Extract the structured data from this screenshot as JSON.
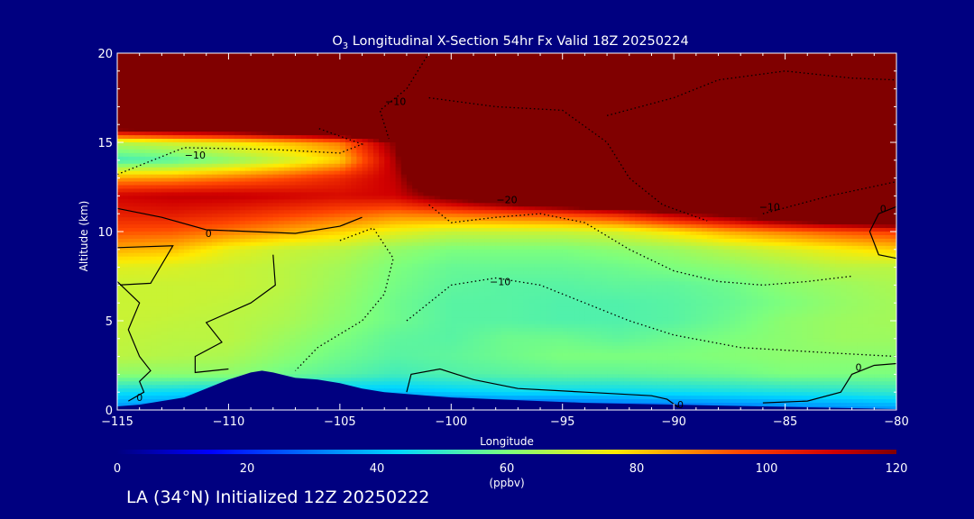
{
  "chart_data": {
    "type": "heatmap",
    "title": "O",
    "title_sub": "3",
    "title_rest": " Longitudinal X-Section 54hr  Fx Valid 18Z 20250224",
    "xlabel": "Longitude",
    "ylabel": "Altitude (km)",
    "xlim": [
      -115,
      -80
    ],
    "ylim": [
      0,
      20
    ],
    "x_ticks": [
      "−115",
      "−110",
      "−105",
      "−100",
      "−95",
      "−90",
      "−85",
      "−80"
    ],
    "x_tick_values": [
      -115,
      -110,
      -105,
      -100,
      -95,
      -90,
      -85,
      -80
    ],
    "y_ticks": [
      "0",
      "5",
      "10",
      "15",
      "20"
    ],
    "y_tick_values": [
      0,
      5,
      10,
      15,
      20
    ],
    "colorbar": {
      "range": [
        0,
        120
      ],
      "ticks": [
        "0",
        "20",
        "40",
        "60",
        "80",
        "100",
        "120"
      ],
      "tick_values": [
        0,
        20,
        40,
        60,
        80,
        100,
        120
      ],
      "units": "(ppbv)"
    },
    "field": {
      "longitudes": [
        -115,
        -112.5,
        -110,
        -107.5,
        -105,
        -102.5,
        -100,
        -97.5,
        -95,
        -92.5,
        -90,
        -87.5,
        -85,
        -82.5,
        -80
      ],
      "altitudes": [
        0,
        1,
        2,
        3,
        4,
        5,
        6,
        7,
        8,
        9,
        10,
        11,
        12,
        13,
        14,
        15,
        16,
        17,
        18,
        19,
        20
      ],
      "values": [
        [
          32,
          30,
          28,
          26,
          24,
          22,
          22,
          22,
          22,
          24,
          26,
          28,
          30,
          32,
          34
        ],
        [
          45,
          44,
          42,
          40,
          40,
          40,
          42,
          44,
          44,
          44,
          45,
          46,
          47,
          48,
          50
        ],
        [
          62,
          62,
          62,
          58,
          55,
          52,
          54,
          55,
          56,
          56,
          57,
          58,
          60,
          60,
          60
        ],
        [
          68,
          67,
          66,
          62,
          58,
          55,
          56,
          58,
          60,
          60,
          60,
          61,
          62,
          62,
          62
        ],
        [
          69,
          68,
          68,
          64,
          60,
          56,
          55,
          58,
          58,
          56,
          58,
          60,
          62,
          64,
          64
        ],
        [
          70,
          69,
          68,
          66,
          62,
          58,
          55,
          55,
          54,
          54,
          55,
          58,
          62,
          64,
          65
        ],
        [
          70,
          70,
          69,
          67,
          63,
          58,
          55,
          55,
          54,
          54,
          55,
          57,
          60,
          63,
          65
        ],
        [
          70,
          70,
          70,
          68,
          64,
          59,
          56,
          55,
          55,
          56,
          56,
          58,
          62,
          64,
          66
        ],
        [
          73,
          72,
          70,
          68,
          65,
          60,
          57,
          57,
          57,
          58,
          60,
          62,
          65,
          68,
          68
        ],
        [
          84,
          82,
          74,
          70,
          68,
          63,
          60,
          60,
          60,
          62,
          64,
          68,
          72,
          76,
          80
        ],
        [
          95,
          94,
          90,
          85,
          80,
          74,
          70,
          70,
          70,
          72,
          78,
          85,
          90,
          95,
          98
        ],
        [
          104,
          105,
          102,
          98,
          94,
          90,
          92,
          95,
          98,
          104,
          115,
          125,
          140,
          150,
          160
        ],
        [
          110,
          112,
          112,
          110,
          108,
          110,
          125,
          140,
          160,
          175,
          190,
          200,
          210,
          220,
          230
        ],
        [
          85,
          86,
          90,
          95,
          102,
          112,
          150,
          175,
          200,
          215,
          230,
          240,
          250,
          260,
          270
        ],
        [
          52,
          55,
          62,
          70,
          80,
          115,
          180,
          205,
          225,
          240,
          255,
          265,
          275,
          285,
          290
        ],
        [
          68,
          72,
          76,
          82,
          90,
          120,
          200,
          225,
          245,
          260,
          275,
          285,
          295,
          300,
          305
        ],
        [
          140,
          145,
          150,
          160,
          170,
          190,
          230,
          250,
          265,
          280,
          295,
          305,
          315,
          320,
          325
        ],
        [
          220,
          225,
          230,
          235,
          240,
          250,
          265,
          280,
          295,
          310,
          320,
          330,
          340,
          345,
          350
        ],
        [
          300,
          305,
          310,
          315,
          320,
          330,
          340,
          350,
          360,
          370,
          380,
          385,
          390,
          395,
          400
        ],
        [
          360,
          365,
          370,
          375,
          380,
          390,
          400,
          410,
          420,
          430,
          440,
          445,
          450,
          455,
          460
        ],
        [
          420,
          425,
          430,
          435,
          440,
          450,
          460,
          470,
          480,
          490,
          500,
          505,
          510,
          515,
          520
        ]
      ]
    },
    "terrain": {
      "longitudes": [
        -115,
        -114,
        -113,
        -112,
        -111,
        -110,
        -109,
        -108.5,
        -108,
        -107,
        -106,
        -105,
        -104,
        -103,
        -102,
        -101,
        -100,
        -98,
        -96,
        -94,
        -92,
        -90,
        -88,
        -86,
        -84,
        -82,
        -80
      ],
      "heights_km": [
        0.2,
        0.3,
        0.5,
        0.7,
        1.2,
        1.7,
        2.1,
        2.2,
        2.1,
        1.8,
        1.7,
        1.5,
        1.2,
        1.0,
        0.9,
        0.8,
        0.7,
        0.6,
        0.5,
        0.4,
        0.35,
        0.3,
        0.25,
        0.2,
        0.15,
        0.1,
        0.05
      ]
    },
    "contour_labels": [
      {
        "text": "−10",
        "lon": -111.5,
        "alt": 14.3
      },
      {
        "text": "−10",
        "lon": -102.5,
        "alt": 17.3
      },
      {
        "text": "−20",
        "lon": -97.5,
        "alt": 11.8
      },
      {
        "text": "−10",
        "lon": -85.7,
        "alt": 11.4
      },
      {
        "text": "−10",
        "lon": -97.8,
        "alt": 7.2
      },
      {
        "text": "0",
        "lon": -110.9,
        "alt": 9.9
      },
      {
        "text": "0",
        "lon": -114,
        "alt": 0.7
      },
      {
        "text": "0",
        "lon": -89.7,
        "alt": 0.3
      },
      {
        "text": "0",
        "lon": -81.7,
        "alt": 2.4
      },
      {
        "text": "0",
        "lon": -80.6,
        "alt": 11.3
      }
    ]
  },
  "footer": "LA (34°N) Initialized 12Z 20250222"
}
